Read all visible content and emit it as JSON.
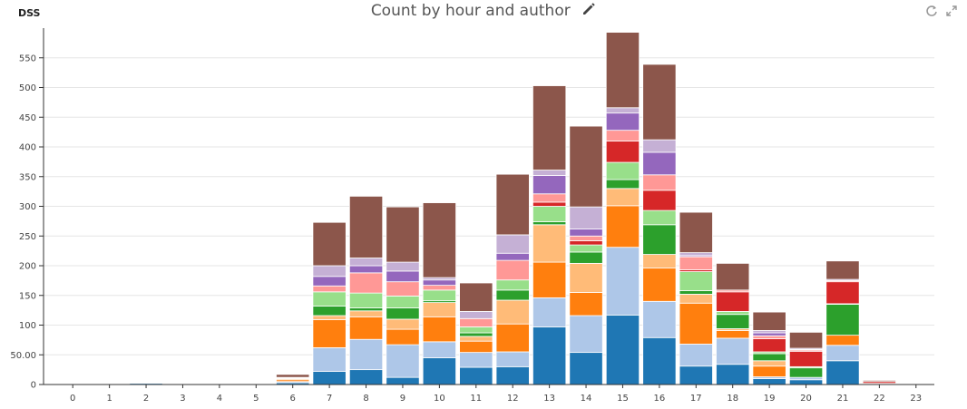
{
  "header": {
    "brand": "DSS",
    "title": "Count by hour and author",
    "icons": {
      "edit": "pencil-icon",
      "refresh": "refresh-icon",
      "expand": "expand-icon"
    }
  },
  "chart_data": {
    "type": "bar",
    "stacked": true,
    "title": "Count by hour and author",
    "xlabel": "",
    "ylabel": "",
    "ylim": [
      0,
      600
    ],
    "yticks": [
      0,
      50,
      100,
      150,
      200,
      250,
      300,
      350,
      400,
      450,
      500,
      550
    ],
    "ytick_labels": [
      "0",
      "50.00",
      "100",
      "150",
      "200",
      "250",
      "300",
      "350",
      "400",
      "450",
      "500",
      "550"
    ],
    "grid": true,
    "categories": [
      "0",
      "1",
      "2",
      "3",
      "4",
      "5",
      "6",
      "7",
      "8",
      "9",
      "10",
      "11",
      "12",
      "13",
      "14",
      "15",
      "16",
      "17",
      "18",
      "19",
      "20",
      "21",
      "22",
      "23"
    ],
    "series": [
      {
        "color": "#1f77b4",
        "values": [
          1,
          0,
          2,
          0,
          1,
          0,
          3,
          22,
          25,
          12,
          45,
          29,
          30,
          97,
          54,
          117,
          79,
          31,
          34,
          10,
          8,
          40,
          1,
          1
        ]
      },
      {
        "color": "#aec7e8",
        "values": [
          0,
          0,
          1,
          0,
          1,
          0,
          2,
          40,
          51,
          55,
          27,
          25,
          25,
          49,
          62,
          114,
          61,
          37,
          44,
          3,
          4,
          26,
          0,
          0
        ]
      },
      {
        "color": "#ff7f0e",
        "values": [
          1,
          0,
          0,
          0,
          0,
          0,
          3,
          47,
          38,
          26,
          42,
          19,
          47,
          60,
          39,
          70,
          56,
          69,
          13,
          18,
          0,
          17,
          1,
          0
        ]
      },
      {
        "color": "#ffbb78",
        "values": [
          1,
          0,
          0,
          0,
          0,
          1,
          2,
          7,
          10,
          17,
          24,
          8,
          40,
          63,
          49,
          29,
          23,
          15,
          3,
          9,
          0,
          0,
          0,
          0
        ]
      },
      {
        "color": "#2ca02c",
        "values": [
          0,
          0,
          0,
          0,
          0,
          0,
          0,
          16,
          5,
          19,
          3,
          6,
          17,
          5,
          19,
          15,
          50,
          6,
          24,
          12,
          16,
          52,
          0,
          0
        ]
      },
      {
        "color": "#98df8a",
        "values": [
          0,
          0,
          0,
          0,
          0,
          0,
          0,
          24,
          25,
          20,
          18,
          10,
          17,
          26,
          12,
          29,
          24,
          32,
          5,
          3,
          2,
          1,
          0,
          0
        ]
      },
      {
        "color": "#d62728",
        "values": [
          0,
          0,
          0,
          0,
          0,
          0,
          0,
          0,
          0,
          0,
          0,
          0,
          0,
          7,
          7,
          36,
          34,
          3,
          33,
          22,
          26,
          37,
          3,
          0
        ]
      },
      {
        "color": "#ff9896",
        "values": [
          0,
          0,
          0,
          0,
          0,
          0,
          0,
          10,
          34,
          24,
          8,
          14,
          33,
          14,
          8,
          18,
          26,
          22,
          3,
          5,
          2,
          2,
          0,
          0
        ]
      },
      {
        "color": "#9467bd",
        "values": [
          0,
          0,
          0,
          0,
          0,
          0,
          1,
          16,
          12,
          18,
          9,
          0,
          12,
          31,
          12,
          29,
          38,
          2,
          0,
          5,
          1,
          0,
          0,
          0
        ]
      },
      {
        "color": "#c5b0d5",
        "values": [
          0,
          0,
          0,
          0,
          0,
          0,
          1,
          18,
          13,
          15,
          4,
          12,
          31,
          9,
          37,
          9,
          21,
          5,
          0,
          4,
          2,
          2,
          0,
          0
        ]
      },
      {
        "color": "#8c564b",
        "values": [
          0,
          0,
          0,
          0,
          0,
          0,
          5,
          73,
          104,
          93,
          126,
          48,
          102,
          142,
          136,
          127,
          127,
          68,
          45,
          31,
          27,
          31,
          2,
          0
        ]
      }
    ]
  }
}
